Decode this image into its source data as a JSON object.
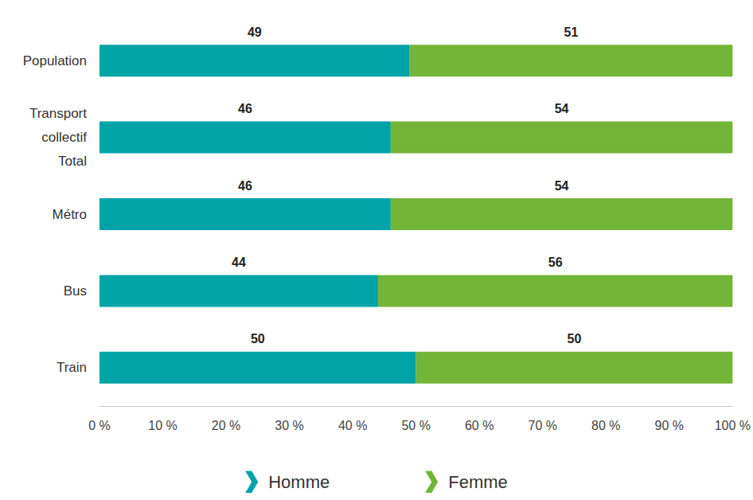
{
  "chart_data": {
    "type": "bar",
    "orientation": "horizontal",
    "stacked": true,
    "data_labels": true,
    "grid": false,
    "legend": "bottom",
    "categories": [
      "Population",
      "Transport collectif Total",
      "Métro",
      "Bus",
      "Train"
    ],
    "series": [
      {
        "name": "Homme",
        "color": "#00a3a6",
        "values": [
          49,
          46,
          46,
          44,
          50
        ]
      },
      {
        "name": "Femme",
        "color": "#72b537",
        "values": [
          51,
          54,
          54,
          56,
          50
        ]
      }
    ],
    "xlim": [
      0,
      100
    ],
    "xticks": [
      {
        "value": 0,
        "label": "0 %"
      },
      {
        "value": 10,
        "label": "10 %"
      },
      {
        "value": 20,
        "label": "20 %"
      },
      {
        "value": 30,
        "label": "30 %"
      },
      {
        "value": 40,
        "label": "40 %"
      },
      {
        "value": 50,
        "label": "50 %"
      },
      {
        "value": 60,
        "label": "60 %"
      },
      {
        "value": 70,
        "label": "70 %"
      },
      {
        "value": 80,
        "label": "80 %"
      },
      {
        "value": 90,
        "label": "90 %"
      },
      {
        "value": 100,
        "label": "100 %"
      }
    ]
  }
}
